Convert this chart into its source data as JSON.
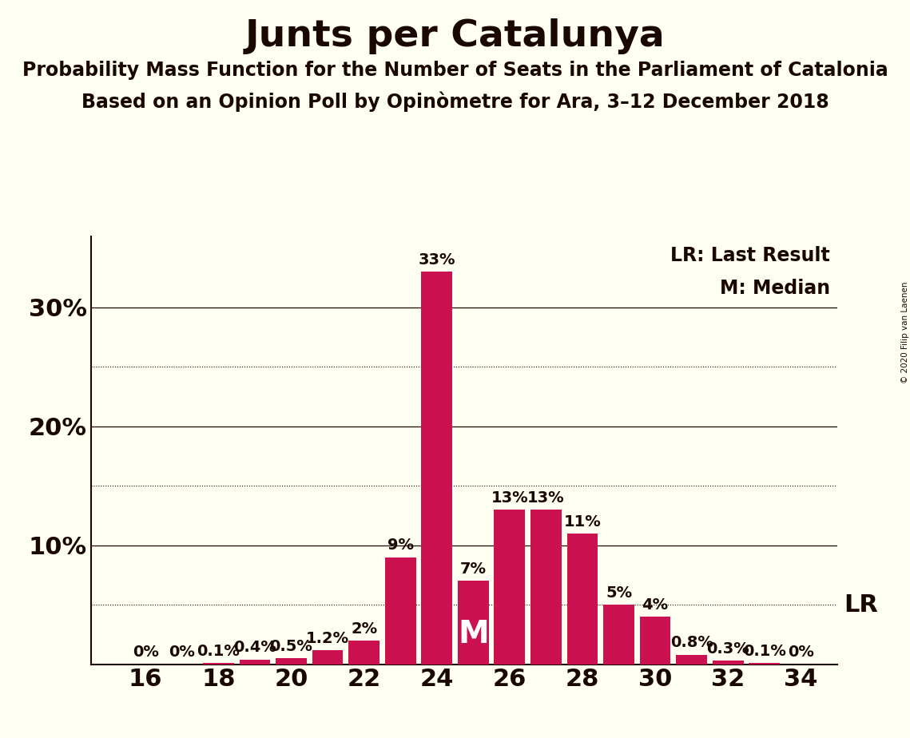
{
  "title": "Junts per Catalunya",
  "subtitle1": "Probability Mass Function for the Number of Seats in the Parliament of Catalonia",
  "subtitle2": "Based on an Opinion Poll by Opinòmetre for Ara, 3–12 December 2018",
  "copyright": "© 2020 Filip van Laenen",
  "seats": [
    16,
    17,
    18,
    19,
    20,
    21,
    22,
    23,
    24,
    25,
    26,
    27,
    28,
    29,
    30,
    31,
    32,
    33,
    34
  ],
  "probabilities": [
    0.0,
    0.0,
    0.1,
    0.4,
    0.5,
    1.2,
    2.0,
    9.0,
    33.0,
    7.0,
    13.0,
    13.0,
    11.0,
    5.0,
    4.0,
    0.8,
    0.3,
    0.1,
    0.0
  ],
  "bar_color": "#CC1150",
  "background_color": "#FFFFF2",
  "text_color": "#1a0800",
  "median_seat": 25,
  "lr_value": 5.0,
  "ylim": [
    0,
    36
  ],
  "yticks": [
    0,
    10,
    20,
    30
  ],
  "ytick_labels": [
    "",
    "10%",
    "20%",
    "30%"
  ],
  "xticks": [
    16,
    18,
    20,
    22,
    24,
    26,
    28,
    30,
    32,
    34
  ],
  "solid_gridlines": [
    10,
    20,
    30
  ],
  "dotted_gridlines": [
    5,
    15,
    25
  ],
  "title_fontsize": 34,
  "subtitle_fontsize": 17,
  "tick_fontsize": 22,
  "legend_fontsize": 17,
  "bar_label_fontsize": 14,
  "median_fontsize": 28,
  "lr_fontsize": 22
}
